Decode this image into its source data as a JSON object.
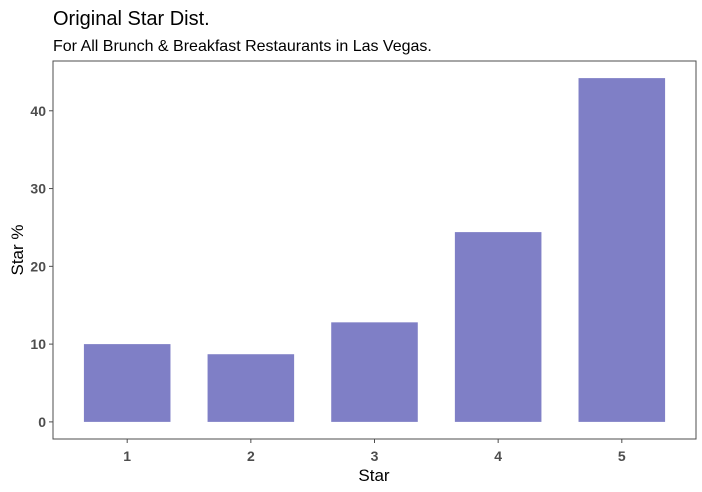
{
  "chart_data": {
    "type": "bar",
    "title": "Original Star Dist.",
    "subtitle": "For All Brunch & Breakfast Restaurants in Las Vegas.",
    "xlabel": "Star",
    "ylabel": "Star %",
    "categories": [
      "1",
      "2",
      "3",
      "4",
      "5"
    ],
    "values": [
      10.0,
      8.7,
      12.8,
      24.4,
      44.2
    ],
    "yticks": [
      0,
      10,
      20,
      30,
      40
    ],
    "ylim": [
      -2.2,
      46.4
    ],
    "grid": false,
    "legend": "none",
    "bar_color": "#7f7fc6"
  }
}
